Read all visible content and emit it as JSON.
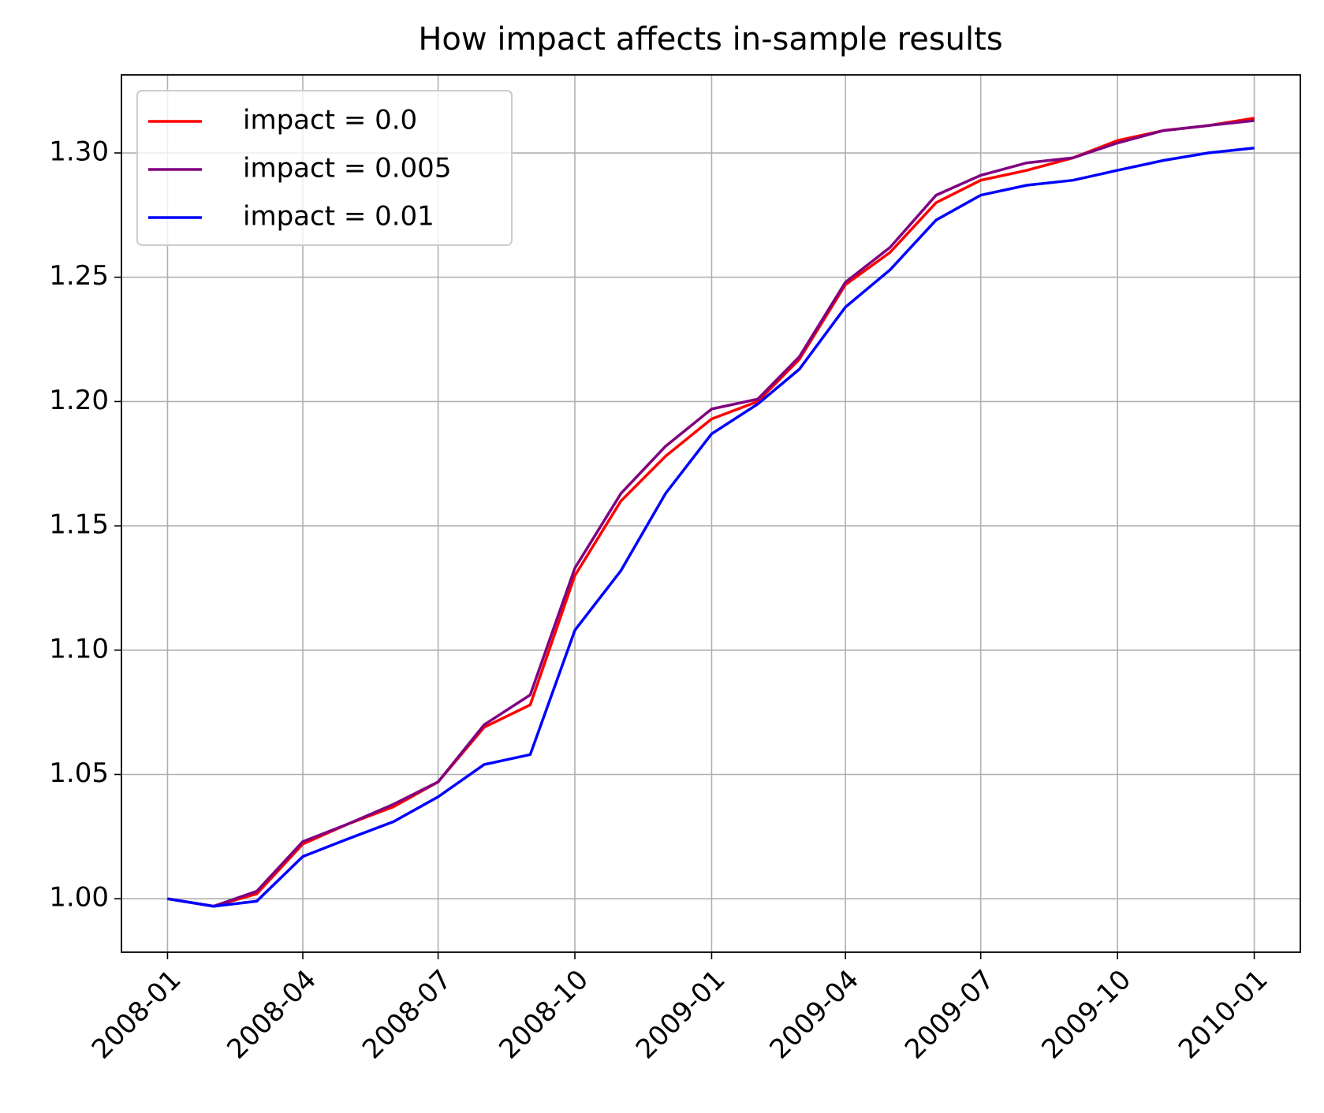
{
  "chart_data": {
    "type": "line",
    "title": "How impact affects in-sample results",
    "x": [
      "2008-01",
      "2008-02",
      "2008-03",
      "2008-04",
      "2008-05",
      "2008-06",
      "2008-07",
      "2008-08",
      "2008-09",
      "2008-10",
      "2008-11",
      "2008-12",
      "2009-01",
      "2009-02",
      "2009-03",
      "2009-04",
      "2009-05",
      "2009-06",
      "2009-07",
      "2009-08",
      "2009-09",
      "2009-10",
      "2009-11",
      "2009-12",
      "2010-01"
    ],
    "series": [
      {
        "name": "impact = 0.0",
        "color": "#ff0000",
        "values": [
          1.0,
          0.997,
          1.002,
          1.022,
          1.03,
          1.037,
          1.047,
          1.069,
          1.078,
          1.13,
          1.16,
          1.178,
          1.193,
          1.2,
          1.217,
          1.247,
          1.26,
          1.28,
          1.289,
          1.293,
          1.298,
          1.305,
          1.309,
          1.311,
          1.314
        ]
      },
      {
        "name": "impact = 0.005",
        "color": "#800080",
        "values": [
          1.0,
          0.997,
          1.003,
          1.023,
          1.03,
          1.038,
          1.047,
          1.07,
          1.082,
          1.133,
          1.163,
          1.182,
          1.197,
          1.201,
          1.218,
          1.248,
          1.262,
          1.283,
          1.291,
          1.296,
          1.298,
          1.304,
          1.309,
          1.311,
          1.313
        ]
      },
      {
        "name": "impact = 0.01",
        "color": "#0000ff",
        "values": [
          1.0,
          0.997,
          0.999,
          1.017,
          1.024,
          1.031,
          1.041,
          1.054,
          1.058,
          1.108,
          1.132,
          1.163,
          1.187,
          1.199,
          1.213,
          1.238,
          1.253,
          1.273,
          1.283,
          1.287,
          1.289,
          1.293,
          1.297,
          1.3,
          1.302
        ]
      }
    ],
    "xlim": [
      "2007-12",
      "2010-02"
    ],
    "xticks": [
      "2008-01",
      "2008-04",
      "2008-07",
      "2008-10",
      "2009-01",
      "2009-04",
      "2009-07",
      "2009-10",
      "2010-01"
    ],
    "ylim": [
      0.9785,
      1.3314
    ],
    "yticks": [
      {
        "value": 1.0,
        "label": "1.00"
      },
      1.05,
      {
        "value": 1.1,
        "label": "1.10"
      },
      1.15,
      {
        "value": 1.2,
        "label": "1.20"
      },
      1.25,
      {
        "value": 1.3,
        "label": "1.30"
      }
    ],
    "grid": true,
    "legend": "upper left"
  }
}
